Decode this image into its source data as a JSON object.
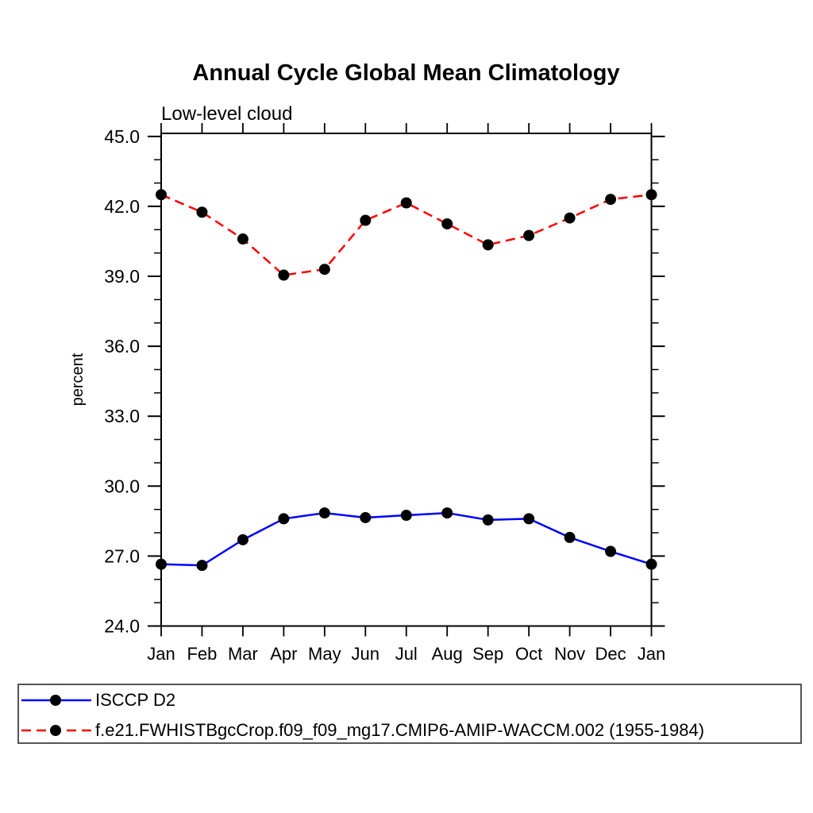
{
  "figure": {
    "background": "#ffffff"
  },
  "chart_data": {
    "type": "line",
    "title": "Annual Cycle Global Mean Climatology",
    "subtitle": "Low-level cloud",
    "ylabel": "percent",
    "xlabel": "",
    "categories": [
      "Jan",
      "Feb",
      "Mar",
      "Apr",
      "May",
      "Jun",
      "Jul",
      "Aug",
      "Sep",
      "Oct",
      "Nov",
      "Dec",
      "Jan"
    ],
    "ylim": [
      24.0,
      45.13
    ],
    "yticks": {
      "values": [
        24,
        27,
        30,
        33,
        36,
        39,
        42,
        45
      ],
      "labels": [
        "24.0",
        "27.0",
        "30.0",
        "33.0",
        "36.0",
        "39.0",
        "42.0",
        "45.0"
      ],
      "minor_step": 1
    },
    "grid": false,
    "axis_color": "#000000",
    "marker": {
      "shape": "filled-circle",
      "color": "#000000",
      "radius": 7
    },
    "legend": {
      "position": "bottom-box",
      "border_color": "#555555"
    },
    "series": [
      {
        "name": "ISCCP D2",
        "color": "#0000ff",
        "style": "solid",
        "values": [
          26.65,
          26.6,
          27.7,
          28.6,
          28.85,
          28.65,
          28.75,
          28.85,
          28.55,
          28.6,
          27.8,
          27.2,
          26.65
        ]
      },
      {
        "name": "f.e21.FWHISTBgcCrop.f09_f09_mg17.CMIP6-AMIP-WACCM.002 (1955-1984)",
        "color": "#ff0000",
        "style": "dashed",
        "values": [
          42.5,
          41.75,
          40.6,
          39.05,
          39.3,
          41.4,
          42.15,
          41.25,
          40.35,
          40.75,
          41.5,
          42.3,
          42.5
        ]
      }
    ]
  }
}
